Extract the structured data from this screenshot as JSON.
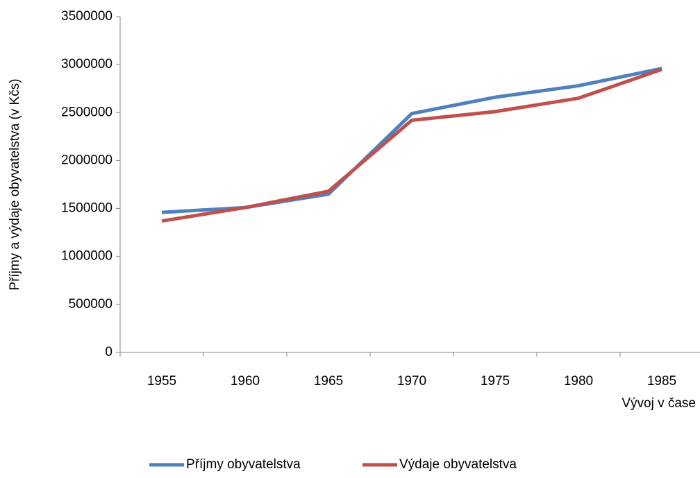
{
  "chart_data": {
    "type": "line",
    "y_label": "Příjmy a výdaje obyvatelstva (v Kčs)",
    "x_label": "Vývoj v čase",
    "categories": [
      "1955",
      "1960",
      "1965",
      "1970",
      "1975",
      "1980",
      "1985"
    ],
    "series": [
      {
        "name": "Příjmy obyvatelstva",
        "color": "#4f81bd",
        "values": [
          1460000,
          1510000,
          1650000,
          2490000,
          2660000,
          2780000,
          2960000
        ]
      },
      {
        "name": "Výdaje obyvatelstva",
        "color": "#c0504d",
        "values": [
          1370000,
          1510000,
          1680000,
          2420000,
          2510000,
          2650000,
          2950000
        ]
      }
    ],
    "ylim": [
      0,
      3500000
    ],
    "yticks": [
      0,
      500000,
      1000000,
      1500000,
      2000000,
      2500000,
      3000000,
      3500000
    ],
    "grid": false,
    "legend": "bottom"
  }
}
